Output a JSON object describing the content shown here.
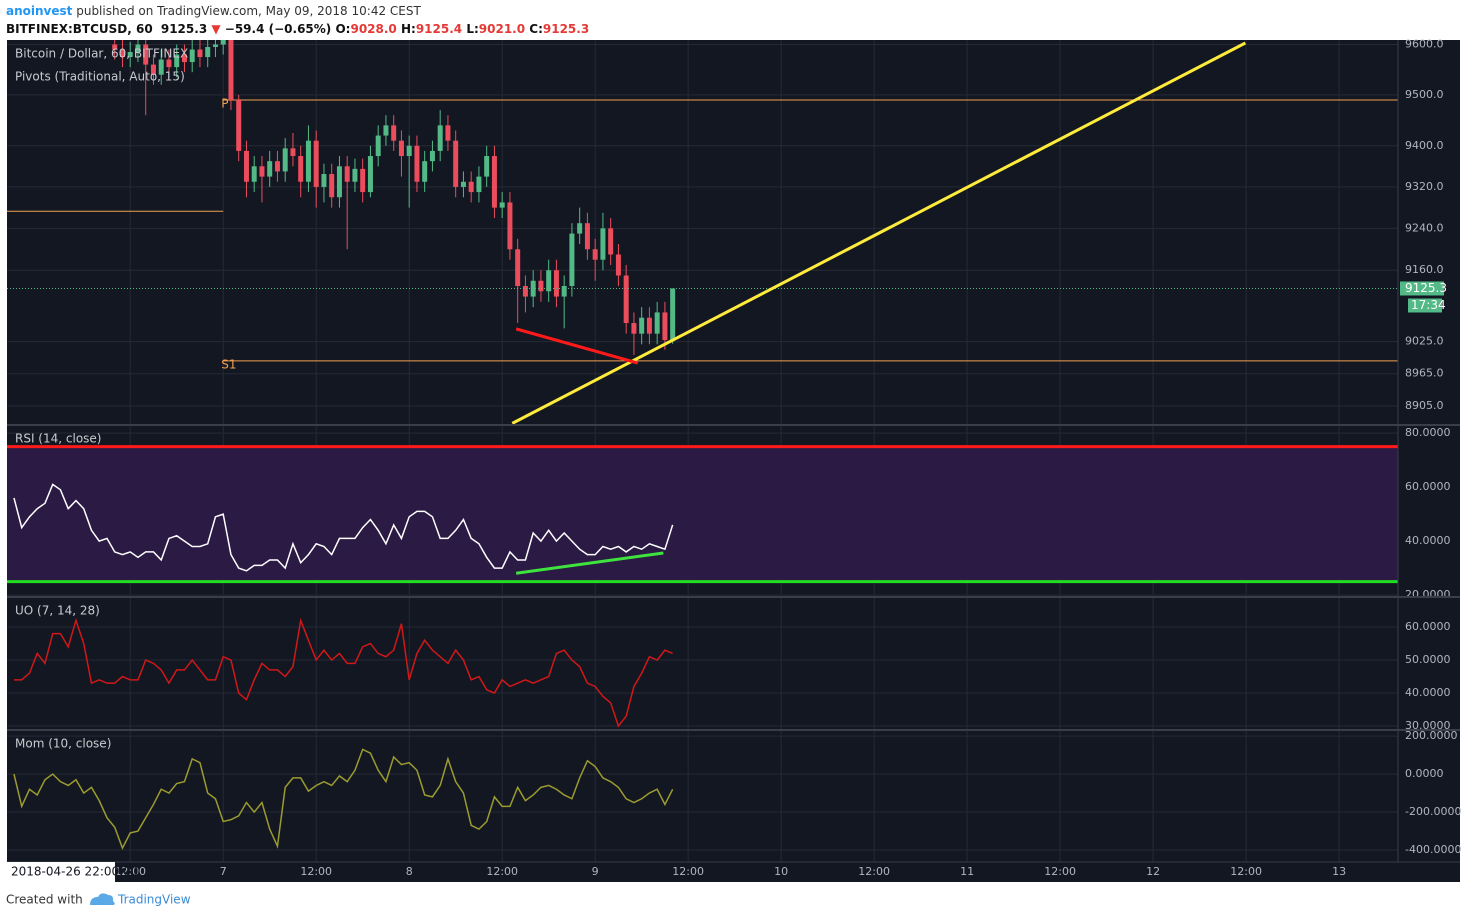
{
  "header": {
    "author": "anoinvest",
    "published": "published on TradingView.com, May 09, 2018 10:42 CEST",
    "symbol": "BITFINEX:BTCUSD, 60",
    "last": "9125.3",
    "arrow": "▼",
    "change": "−59.4 (−0.65%)",
    "ohlc": [
      {
        "key": "O:",
        "value": "9028.0"
      },
      {
        "key": "H:",
        "value": "9125.4"
      },
      {
        "key": "L:",
        "value": "9021.0"
      },
      {
        "key": "C:",
        "value": "9125.3"
      }
    ]
  },
  "time_axis": {
    "xlim": [
      -3.9,
      175.6
    ],
    "cursor_label": "2018-04-26 22:00:00",
    "xticks": [
      {
        "value": 12,
        "label": "12:00"
      },
      {
        "value": 24,
        "label": "7"
      },
      {
        "value": 36,
        "label": "12:00"
      },
      {
        "value": 48,
        "label": "8"
      },
      {
        "value": 60,
        "label": "12:00"
      },
      {
        "value": 72,
        "label": "9"
      },
      {
        "value": 84,
        "label": "12:00"
      },
      {
        "value": 96,
        "label": "10"
      },
      {
        "value": 108,
        "label": "12:00"
      },
      {
        "value": 120,
        "label": "11"
      },
      {
        "value": 132,
        "label": "12:00"
      },
      {
        "value": 144,
        "label": "12"
      },
      {
        "value": 156,
        "label": "12:00"
      },
      {
        "value": 168,
        "label": "13"
      }
    ]
  },
  "chart_data": [
    {
      "type": "candlestick",
      "title": "Bitcoin / Dollar, 60, BITFINEX",
      "subtitle": "Pivots (Traditional, Auto, 15)",
      "log": true,
      "ylim": [
        8870,
        9609
      ],
      "grid": true,
      "up_color": "#53b987",
      "down_color": "#eb4d5c",
      "countdown": "17:34",
      "yticks": [
        {
          "value": 9600,
          "label": "9600.0"
        },
        {
          "value": 9500,
          "label": "9500.0"
        },
        {
          "value": 9400,
          "label": "9400.0"
        },
        {
          "value": 9320,
          "label": "9320.0"
        },
        {
          "value": 9240,
          "label": "9240.0"
        },
        {
          "value": 9160,
          "label": "9160.0"
        },
        {
          "value": 9025,
          "label": "9025.0"
        },
        {
          "value": 8965,
          "label": "8965.0"
        },
        {
          "value": 8905,
          "label": "8905.0"
        }
      ],
      "x": [
        10,
        11,
        12,
        13,
        14,
        15,
        16,
        17,
        18,
        19,
        20,
        21,
        22,
        23,
        24,
        25,
        26,
        27,
        28,
        29,
        30,
        31,
        32,
        33,
        34,
        35,
        36,
        37,
        38,
        39,
        40,
        41,
        42,
        43,
        44,
        45,
        46,
        47,
        48,
        49,
        50,
        51,
        52,
        53,
        54,
        55,
        56,
        57,
        58,
        59,
        60,
        61,
        62,
        63,
        64,
        65,
        66,
        67,
        68,
        69,
        70,
        71,
        72,
        73,
        74,
        75,
        76,
        77,
        78,
        79,
        80,
        81,
        82
      ],
      "open": [
        9600,
        9590,
        9575,
        9585,
        9600,
        9560,
        9540,
        9570,
        9555,
        9580,
        9565,
        9590,
        9575,
        9595,
        9600,
        9610,
        9490,
        9390,
        9330,
        9360,
        9340,
        9370,
        9350,
        9395,
        9380,
        9330,
        9410,
        9320,
        9345,
        9300,
        9360,
        9330,
        9355,
        9310,
        9380,
        9420,
        9440,
        9410,
        9380,
        9400,
        9330,
        9370,
        9390,
        9440,
        9410,
        9320,
        9330,
        9310,
        9340,
        9380,
        9280,
        9290,
        9200,
        9130,
        9110,
        9140,
        9120,
        9160,
        9110,
        9130,
        9230,
        9250,
        9200,
        9180,
        9240,
        9190,
        9150,
        9060,
        9040,
        9070,
        9040,
        9080,
        9028
      ],
      "high": [
        9620,
        9610,
        9605,
        9620,
        9620,
        9580,
        9590,
        9590,
        9600,
        9600,
        9610,
        9610,
        9615,
        9620,
        9640,
        9630,
        9500,
        9410,
        9380,
        9380,
        9390,
        9390,
        9415,
        9425,
        9400,
        9440,
        9430,
        9365,
        9365,
        9380,
        9380,
        9375,
        9375,
        9400,
        9440,
        9460,
        9460,
        9430,
        9420,
        9420,
        9390,
        9410,
        9470,
        9460,
        9430,
        9350,
        9350,
        9360,
        9400,
        9400,
        9310,
        9310,
        9220,
        9150,
        9160,
        9160,
        9180,
        9180,
        9150,
        9250,
        9280,
        9270,
        9220,
        9270,
        9260,
        9210,
        9170,
        9080,
        9090,
        9090,
        9100,
        9100,
        9125.4
      ],
      "low": [
        9570,
        9555,
        9555,
        9565,
        9460,
        9520,
        9520,
        9535,
        9535,
        9545,
        9545,
        9555,
        9555,
        9575,
        9580,
        9470,
        9370,
        9300,
        9310,
        9290,
        9320,
        9330,
        9330,
        9360,
        9300,
        9310,
        9280,
        9290,
        9280,
        9280,
        9200,
        9310,
        9290,
        9300,
        9360,
        9400,
        9390,
        9340,
        9280,
        9310,
        9310,
        9350,
        9370,
        9390,
        9300,
        9300,
        9290,
        9290,
        9320,
        9260,
        9260,
        9180,
        9060,
        9080,
        9090,
        9100,
        9100,
        9090,
        9050,
        9110,
        9210,
        9180,
        9140,
        9160,
        9170,
        9130,
        9040,
        9000,
        9020,
        9020,
        9020,
        9010,
        9021
      ],
      "close": [
        9590,
        9575,
        9585,
        9600,
        9560,
        9540,
        9570,
        9555,
        9580,
        9565,
        9590,
        9575,
        9595,
        9600,
        9610,
        9490,
        9390,
        9330,
        9360,
        9340,
        9370,
        9350,
        9395,
        9380,
        9330,
        9410,
        9320,
        9345,
        9300,
        9360,
        9330,
        9355,
        9310,
        9380,
        9420,
        9440,
        9410,
        9380,
        9400,
        9330,
        9370,
        9390,
        9440,
        9410,
        9320,
        9330,
        9310,
        9340,
        9380,
        9280,
        9290,
        9200,
        9130,
        9110,
        9140,
        9120,
        9160,
        9110,
        9130,
        9230,
        9250,
        9200,
        9180,
        9240,
        9190,
        9150,
        9060,
        9040,
        9070,
        9040,
        9080,
        9028,
        9125.3
      ],
      "pivots": [
        {
          "value": 9273,
          "x": [
            -3.9,
            24
          ]
        },
        {
          "label": "P",
          "value": 9490,
          "x": [
            24,
            175.6
          ]
        },
        {
          "label": "S1",
          "value": 8989,
          "x": [
            24,
            175.6
          ]
        }
      ],
      "pivot_color": "#f0a050",
      "lines": [
        {
          "color": "#ffeb3b",
          "x": [
            61.3,
            155.9
          ],
          "y": [
            8873,
            9603
          ]
        },
        {
          "color": "#ff1a1a",
          "x": [
            61.8,
            77.5
          ],
          "y": [
            9049,
            8985
          ]
        }
      ]
    },
    {
      "type": "line",
      "title": "RSI (14, close)",
      "ylim": [
        19.3,
        83
      ],
      "grid": true,
      "color": "#ffffff",
      "yticks": [
        {
          "value": 80,
          "label": "80.0000"
        },
        {
          "value": 60,
          "label": "60.0000"
        },
        {
          "value": 40,
          "label": "40.0000"
        },
        {
          "value": 20,
          "label": "20.0000"
        }
      ],
      "bands": [
        {
          "value": 75,
          "color": "#ff1a1a"
        },
        {
          "value": 25,
          "color": "#22dd22"
        }
      ],
      "band_fill": "#2a1a44",
      "x": [
        -3,
        -2,
        -1,
        0,
        1,
        2,
        3,
        4,
        5,
        6,
        7,
        8,
        9,
        10,
        11,
        12,
        13,
        14,
        15,
        16,
        17,
        18,
        19,
        20,
        21,
        22,
        23,
        24,
        25,
        26,
        27,
        28,
        29,
        30,
        31,
        32,
        33,
        34,
        35,
        36,
        37,
        38,
        39,
        40,
        41,
        42,
        43,
        44,
        45,
        46,
        47,
        48,
        49,
        50,
        51,
        52,
        53,
        54,
        55,
        56,
        57,
        58,
        59,
        60,
        61,
        62,
        63,
        64,
        65,
        66,
        67,
        68,
        69,
        70,
        71,
        72,
        73,
        74,
        75,
        76,
        77,
        78,
        79,
        80,
        81,
        82
      ],
      "values": [
        56,
        45,
        49,
        52,
        54,
        61,
        59,
        52,
        55,
        52,
        44,
        40,
        41,
        36,
        35,
        36,
        34,
        36,
        36,
        33,
        41,
        42,
        40,
        38,
        38,
        39,
        49,
        50,
        35,
        30,
        29,
        31,
        31,
        33,
        33,
        30,
        39,
        32,
        35,
        39,
        38,
        35,
        41,
        41,
        41,
        45,
        48,
        44,
        39,
        46,
        41,
        49,
        51,
        51,
        49,
        41,
        41,
        44,
        48,
        41,
        39,
        34,
        30,
        30,
        36,
        33,
        33,
        43,
        40,
        44,
        40,
        43,
        40,
        37,
        35,
        35,
        38,
        37,
        38,
        36,
        38,
        37,
        39,
        38,
        37,
        46
      ],
      "lines": [
        {
          "color": "#3ee33e",
          "x": [
            61.8,
            80.8
          ],
          "y": [
            28.1,
            35.6
          ]
        }
      ]
    },
    {
      "type": "line",
      "title": "UO (7, 14, 28)",
      "ylim": [
        28.8,
        69.1
      ],
      "grid": true,
      "color": "#d01818",
      "yticks": [
        {
          "value": 60,
          "label": "60.0000"
        },
        {
          "value": 50,
          "label": "50.0000"
        },
        {
          "value": 40,
          "label": "40.0000"
        },
        {
          "value": 30,
          "label": "30.0000"
        }
      ],
      "x": [
        -3,
        -2,
        -1,
        0,
        1,
        2,
        3,
        4,
        5,
        6,
        7,
        8,
        9,
        10,
        11,
        12,
        13,
        14,
        15,
        16,
        17,
        18,
        19,
        20,
        21,
        22,
        23,
        24,
        25,
        26,
        27,
        28,
        29,
        30,
        31,
        32,
        33,
        34,
        35,
        36,
        37,
        38,
        39,
        40,
        41,
        42,
        43,
        44,
        45,
        46,
        47,
        48,
        49,
        50,
        51,
        52,
        53,
        54,
        55,
        56,
        57,
        58,
        59,
        60,
        61,
        62,
        63,
        64,
        65,
        66,
        67,
        68,
        69,
        70,
        71,
        72,
        73,
        74,
        75,
        76,
        77,
        78,
        79,
        80,
        81,
        82
      ],
      "values": [
        44,
        44,
        46,
        52,
        49,
        58,
        58,
        54,
        62,
        55,
        43,
        44,
        43,
        43,
        45,
        44,
        44,
        50,
        49,
        47,
        43,
        47,
        47,
        50,
        47,
        44,
        44,
        51,
        50,
        40,
        38,
        44,
        49,
        47,
        47,
        45,
        48,
        62,
        56,
        50,
        53,
        50,
        52,
        49,
        49,
        54,
        55,
        52,
        51,
        53,
        61,
        44,
        52,
        56,
        53,
        51,
        49,
        53,
        50,
        44,
        45,
        41,
        40,
        44,
        42,
        43,
        44,
        43,
        44,
        45,
        52,
        53,
        50,
        48,
        43,
        42,
        39,
        37,
        30,
        33,
        42,
        46,
        51,
        50,
        53,
        52
      ]
    },
    {
      "type": "line",
      "title": "Mom (10, close)",
      "ylim": [
        -463,
        232
      ],
      "grid": true,
      "color": "#9b9b2f",
      "yticks": [
        {
          "value": 200,
          "label": "200.0000"
        },
        {
          "value": 0,
          "label": "0.0000"
        },
        {
          "value": -200,
          "label": "-200.0000"
        },
        {
          "value": -400,
          "label": "-400.0000"
        }
      ],
      "x": [
        -3,
        -2,
        -1,
        0,
        1,
        2,
        3,
        4,
        5,
        6,
        7,
        8,
        9,
        10,
        11,
        12,
        13,
        14,
        15,
        16,
        17,
        18,
        19,
        20,
        21,
        22,
        23,
        24,
        25,
        26,
        27,
        28,
        29,
        30,
        31,
        32,
        33,
        34,
        35,
        36,
        37,
        38,
        39,
        40,
        41,
        42,
        43,
        44,
        45,
        46,
        47,
        48,
        49,
        50,
        51,
        52,
        53,
        54,
        55,
        56,
        57,
        58,
        59,
        60,
        61,
        62,
        63,
        64,
        65,
        66,
        67,
        68,
        69,
        70,
        71,
        72,
        73,
        74,
        75,
        76,
        77,
        78,
        79,
        80,
        81,
        82
      ],
      "values": [
        0,
        -170,
        -80,
        -110,
        -30,
        0,
        -40,
        -60,
        -30,
        -100,
        -70,
        -140,
        -230,
        -280,
        -390,
        -310,
        -300,
        -230,
        -160,
        -80,
        -100,
        -50,
        -40,
        80,
        60,
        -100,
        -130,
        -250,
        -240,
        -220,
        -150,
        -200,
        -150,
        -290,
        -380,
        -70,
        -20,
        -20,
        -90,
        -60,
        -40,
        -60,
        -10,
        -40,
        20,
        130,
        110,
        20,
        -40,
        90,
        50,
        60,
        20,
        -110,
        -120,
        -60,
        80,
        -40,
        -100,
        -270,
        -290,
        -250,
        -120,
        -170,
        -170,
        -70,
        -140,
        -110,
        -70,
        -60,
        -80,
        -110,
        -130,
        -20,
        70,
        40,
        -20,
        -40,
        -70,
        -130,
        -150,
        -130,
        -100,
        -80,
        -160,
        -80
      ]
    }
  ],
  "footer": {
    "text": "Created with",
    "brand": "TradingView"
  }
}
